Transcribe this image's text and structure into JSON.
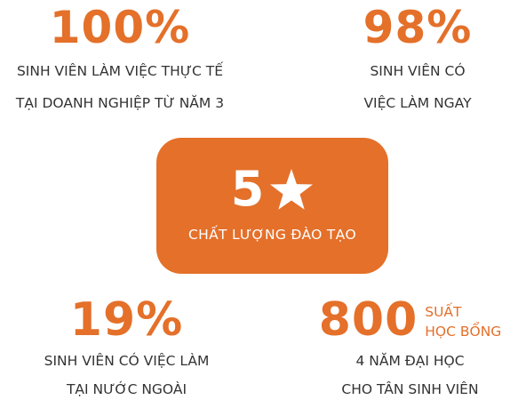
{
  "stats": {
    "top_left": {
      "value": "100%",
      "line1": "SINH VIÊN LÀM VIỆC THỰC TẾ",
      "line2": "TẠI DOANH NGHIỆP TỪ NĂM 3"
    },
    "top_right": {
      "value": "98%",
      "line1": "SINH VIÊN CÓ",
      "line2": "VIỆC LÀM NGAY"
    },
    "bottom_left": {
      "value": "19%",
      "line1": "SINH VIÊN CÓ VIỆC LÀM",
      "line2": "TẠI NƯỚC NGOÀI"
    },
    "bottom_right": {
      "value": "800",
      "side_line1": "SUẤT",
      "side_line2": "HỌC BỔNG",
      "line1": "4 NĂM ĐẠI HỌC",
      "line2": "CHO TÂN SINH VIÊN"
    }
  },
  "rating_card": {
    "number": "5",
    "icon": "star-icon",
    "label": "CHẤT LƯỢNG ĐÀO TẠO"
  },
  "colors": {
    "accent": "#e4702a",
    "text": "#333333",
    "card_text": "#ffffff",
    "background": "#ffffff"
  }
}
